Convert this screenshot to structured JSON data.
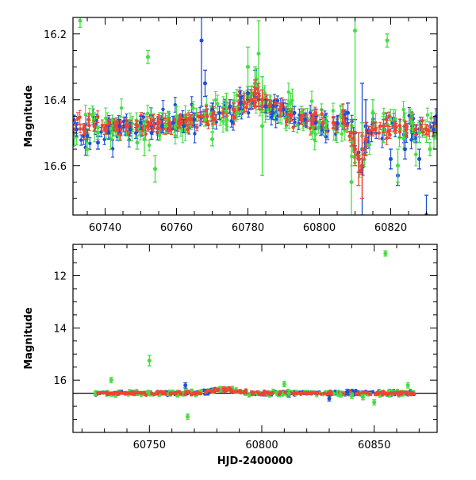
{
  "chart_data": [
    {
      "type": "scatter",
      "title": "",
      "xlabel": "",
      "ylabel": "Magnitude",
      "xlim": [
        60731,
        60833
      ],
      "ylim": [
        16.75,
        16.15
      ],
      "y_inverted": true,
      "grid": false,
      "legend": "none",
      "xticks": [
        60740,
        60760,
        60780,
        60800,
        60820
      ],
      "yticks": [
        16.2,
        16.4,
        16.6
      ],
      "baseline_noise": {
        "blue": 0.02,
        "green": 0.025,
        "red": 0.015
      },
      "series": [
        {
          "color": "#1e4fd8",
          "x": [
            60732,
            60735,
            60738,
            60741,
            60744,
            60747,
            60750,
            60753,
            60756,
            60759,
            60762,
            60765,
            60767,
            60768,
            60770,
            60772,
            60775,
            60778,
            60780,
            60782,
            60783,
            60785,
            60787,
            60790,
            60793,
            60796,
            60799,
            60802,
            60805,
            60808,
            60810,
            60811,
            60812,
            60813,
            60815,
            60818,
            60820,
            60822,
            60824,
            60826,
            60828,
            60830,
            60832
          ],
          "y": [
            16.49,
            16.51,
            16.53,
            16.5,
            16.48,
            16.49,
            16.47,
            16.5,
            16.48,
            16.47,
            16.48,
            16.46,
            16.22,
            16.35,
            16.43,
            16.44,
            16.42,
            16.41,
            16.38,
            16.35,
            16.4,
            16.42,
            16.44,
            16.43,
            16.44,
            16.46,
            16.47,
            16.47,
            16.47,
            16.44,
            16.5,
            16.56,
            16.55,
            16.48,
            16.47,
            16.49,
            16.58,
            16.63,
            16.55,
            16.5,
            16.58,
            16.75,
            16.49
          ],
          "yerr": [
            0.02,
            0.02,
            0.02,
            0.02,
            0.02,
            0.02,
            0.02,
            0.02,
            0.02,
            0.02,
            0.02,
            0.02,
            0.2,
            0.04,
            0.02,
            0.02,
            0.02,
            0.02,
            0.02,
            0.04,
            0.02,
            0.02,
            0.02,
            0.02,
            0.02,
            0.02,
            0.02,
            0.02,
            0.02,
            0.03,
            0.04,
            0.06,
            0.2,
            0.08,
            0.03,
            0.03,
            0.03,
            0.03,
            0.03,
            0.02,
            0.03,
            0.06,
            0.02
          ]
        },
        {
          "color": "#44dd44",
          "x": [
            60733,
            60735,
            60738,
            60742,
            60746,
            60749,
            60751,
            60752,
            60754,
            60757,
            60760,
            60764,
            60768,
            60770,
            60774,
            60777,
            60780,
            60782,
            60783,
            60784,
            60786,
            60789,
            60792,
            60795,
            60798,
            60802,
            60806,
            60809,
            60810,
            60812,
            60815,
            60818,
            60819,
            60822,
            60824,
            60826,
            60828,
            60831
          ],
          "y": [
            16.16,
            16.55,
            16.5,
            16.5,
            16.49,
            16.53,
            16.52,
            16.27,
            16.61,
            16.48,
            16.45,
            16.47,
            16.46,
            16.52,
            16.41,
            16.44,
            16.3,
            16.35,
            16.26,
            16.48,
            16.43,
            16.45,
            16.41,
            16.44,
            16.5,
            16.47,
            16.45,
            16.65,
            16.19,
            16.51,
            16.44,
            16.49,
            16.22,
            16.6,
            16.48,
            16.47,
            16.5,
            16.55
          ],
          "yerr": [
            0.02,
            0.02,
            0.02,
            0.02,
            0.02,
            0.02,
            0.05,
            0.02,
            0.04,
            0.02,
            0.03,
            0.02,
            0.02,
            0.02,
            0.03,
            0.02,
            0.06,
            0.05,
            0.1,
            0.15,
            0.03,
            0.02,
            0.03,
            0.02,
            0.02,
            0.02,
            0.03,
            0.12,
            0.4,
            0.04,
            0.04,
            0.04,
            0.02,
            0.05,
            0.04,
            0.03,
            0.03,
            0.02
          ]
        },
        {
          "color": "#ee4433",
          "x": [
            60731,
            60734,
            60737,
            60740,
            60743,
            60746,
            60749,
            60752,
            60755,
            60758,
            60761,
            60764,
            60767,
            60770,
            60773,
            60776,
            60779,
            60781,
            60782,
            60783,
            60784,
            60786,
            60789,
            60792,
            60795,
            60798,
            60801,
            60804,
            60807,
            60809,
            60810,
            60811,
            60812,
            60813,
            60815,
            60818,
            60821,
            60824,
            60827,
            60830,
            60833
          ],
          "y": [
            16.49,
            16.49,
            16.48,
            16.49,
            16.48,
            16.48,
            16.48,
            16.48,
            16.47,
            16.47,
            16.47,
            16.46,
            16.45,
            16.45,
            16.44,
            16.43,
            16.41,
            16.4,
            16.38,
            16.39,
            16.4,
            16.42,
            16.43,
            16.45,
            16.46,
            16.46,
            16.47,
            16.47,
            16.47,
            16.5,
            16.55,
            16.58,
            16.6,
            16.52,
            16.49,
            16.48,
            16.48,
            16.48,
            16.49,
            16.49,
            16.48
          ],
          "yerr": [
            0.015,
            0.015,
            0.015,
            0.015,
            0.015,
            0.015,
            0.015,
            0.015,
            0.015,
            0.015,
            0.015,
            0.015,
            0.015,
            0.015,
            0.015,
            0.02,
            0.03,
            0.03,
            0.04,
            0.04,
            0.03,
            0.02,
            0.02,
            0.015,
            0.015,
            0.015,
            0.015,
            0.015,
            0.02,
            0.04,
            0.05,
            0.08,
            0.1,
            0.05,
            0.02,
            0.02,
            0.015,
            0.015,
            0.015,
            0.015,
            0.015
          ]
        }
      ]
    },
    {
      "type": "scatter",
      "title": "",
      "xlabel": "HJD-2400000",
      "ylabel": "Magnitude",
      "xlim": [
        60716,
        60878
      ],
      "ylim": [
        18.0,
        10.8
      ],
      "y_inverted": true,
      "grid": false,
      "legend": "none",
      "xticks": [
        60750,
        60800,
        60850
      ],
      "yticks": [
        12,
        14,
        16
      ],
      "reference_line_y": 16.5,
      "baseline_range": [
        60725,
        60868
      ],
      "baseline_noise": {
        "blue": 0.04,
        "green": 0.05,
        "red": 0.03
      },
      "series": [
        {
          "color": "#1e4fd8",
          "x": [
            60766,
            60812,
            60830,
            60838
          ],
          "y": [
            16.2,
            16.55,
            16.7,
            16.45
          ],
          "yerr": [
            0.1,
            0.1,
            0.1,
            0.1
          ]
        },
        {
          "color": "#44dd44",
          "x": [
            60733,
            60750,
            60767,
            60810,
            60812,
            60835,
            60840,
            60845,
            60850,
            60855,
            60865
          ],
          "y": [
            16.0,
            15.25,
            17.4,
            16.15,
            16.5,
            16.55,
            16.6,
            16.65,
            16.85,
            11.15,
            16.2
          ],
          "yerr": [
            0.1,
            0.2,
            0.1,
            0.1,
            0.1,
            0.1,
            0.1,
            0.1,
            0.1,
            0.1,
            0.1
          ]
        },
        {
          "color": "#ee4433",
          "x": [
            60783
          ],
          "y": [
            16.35
          ],
          "yerr": [
            0.1
          ]
        }
      ]
    }
  ]
}
